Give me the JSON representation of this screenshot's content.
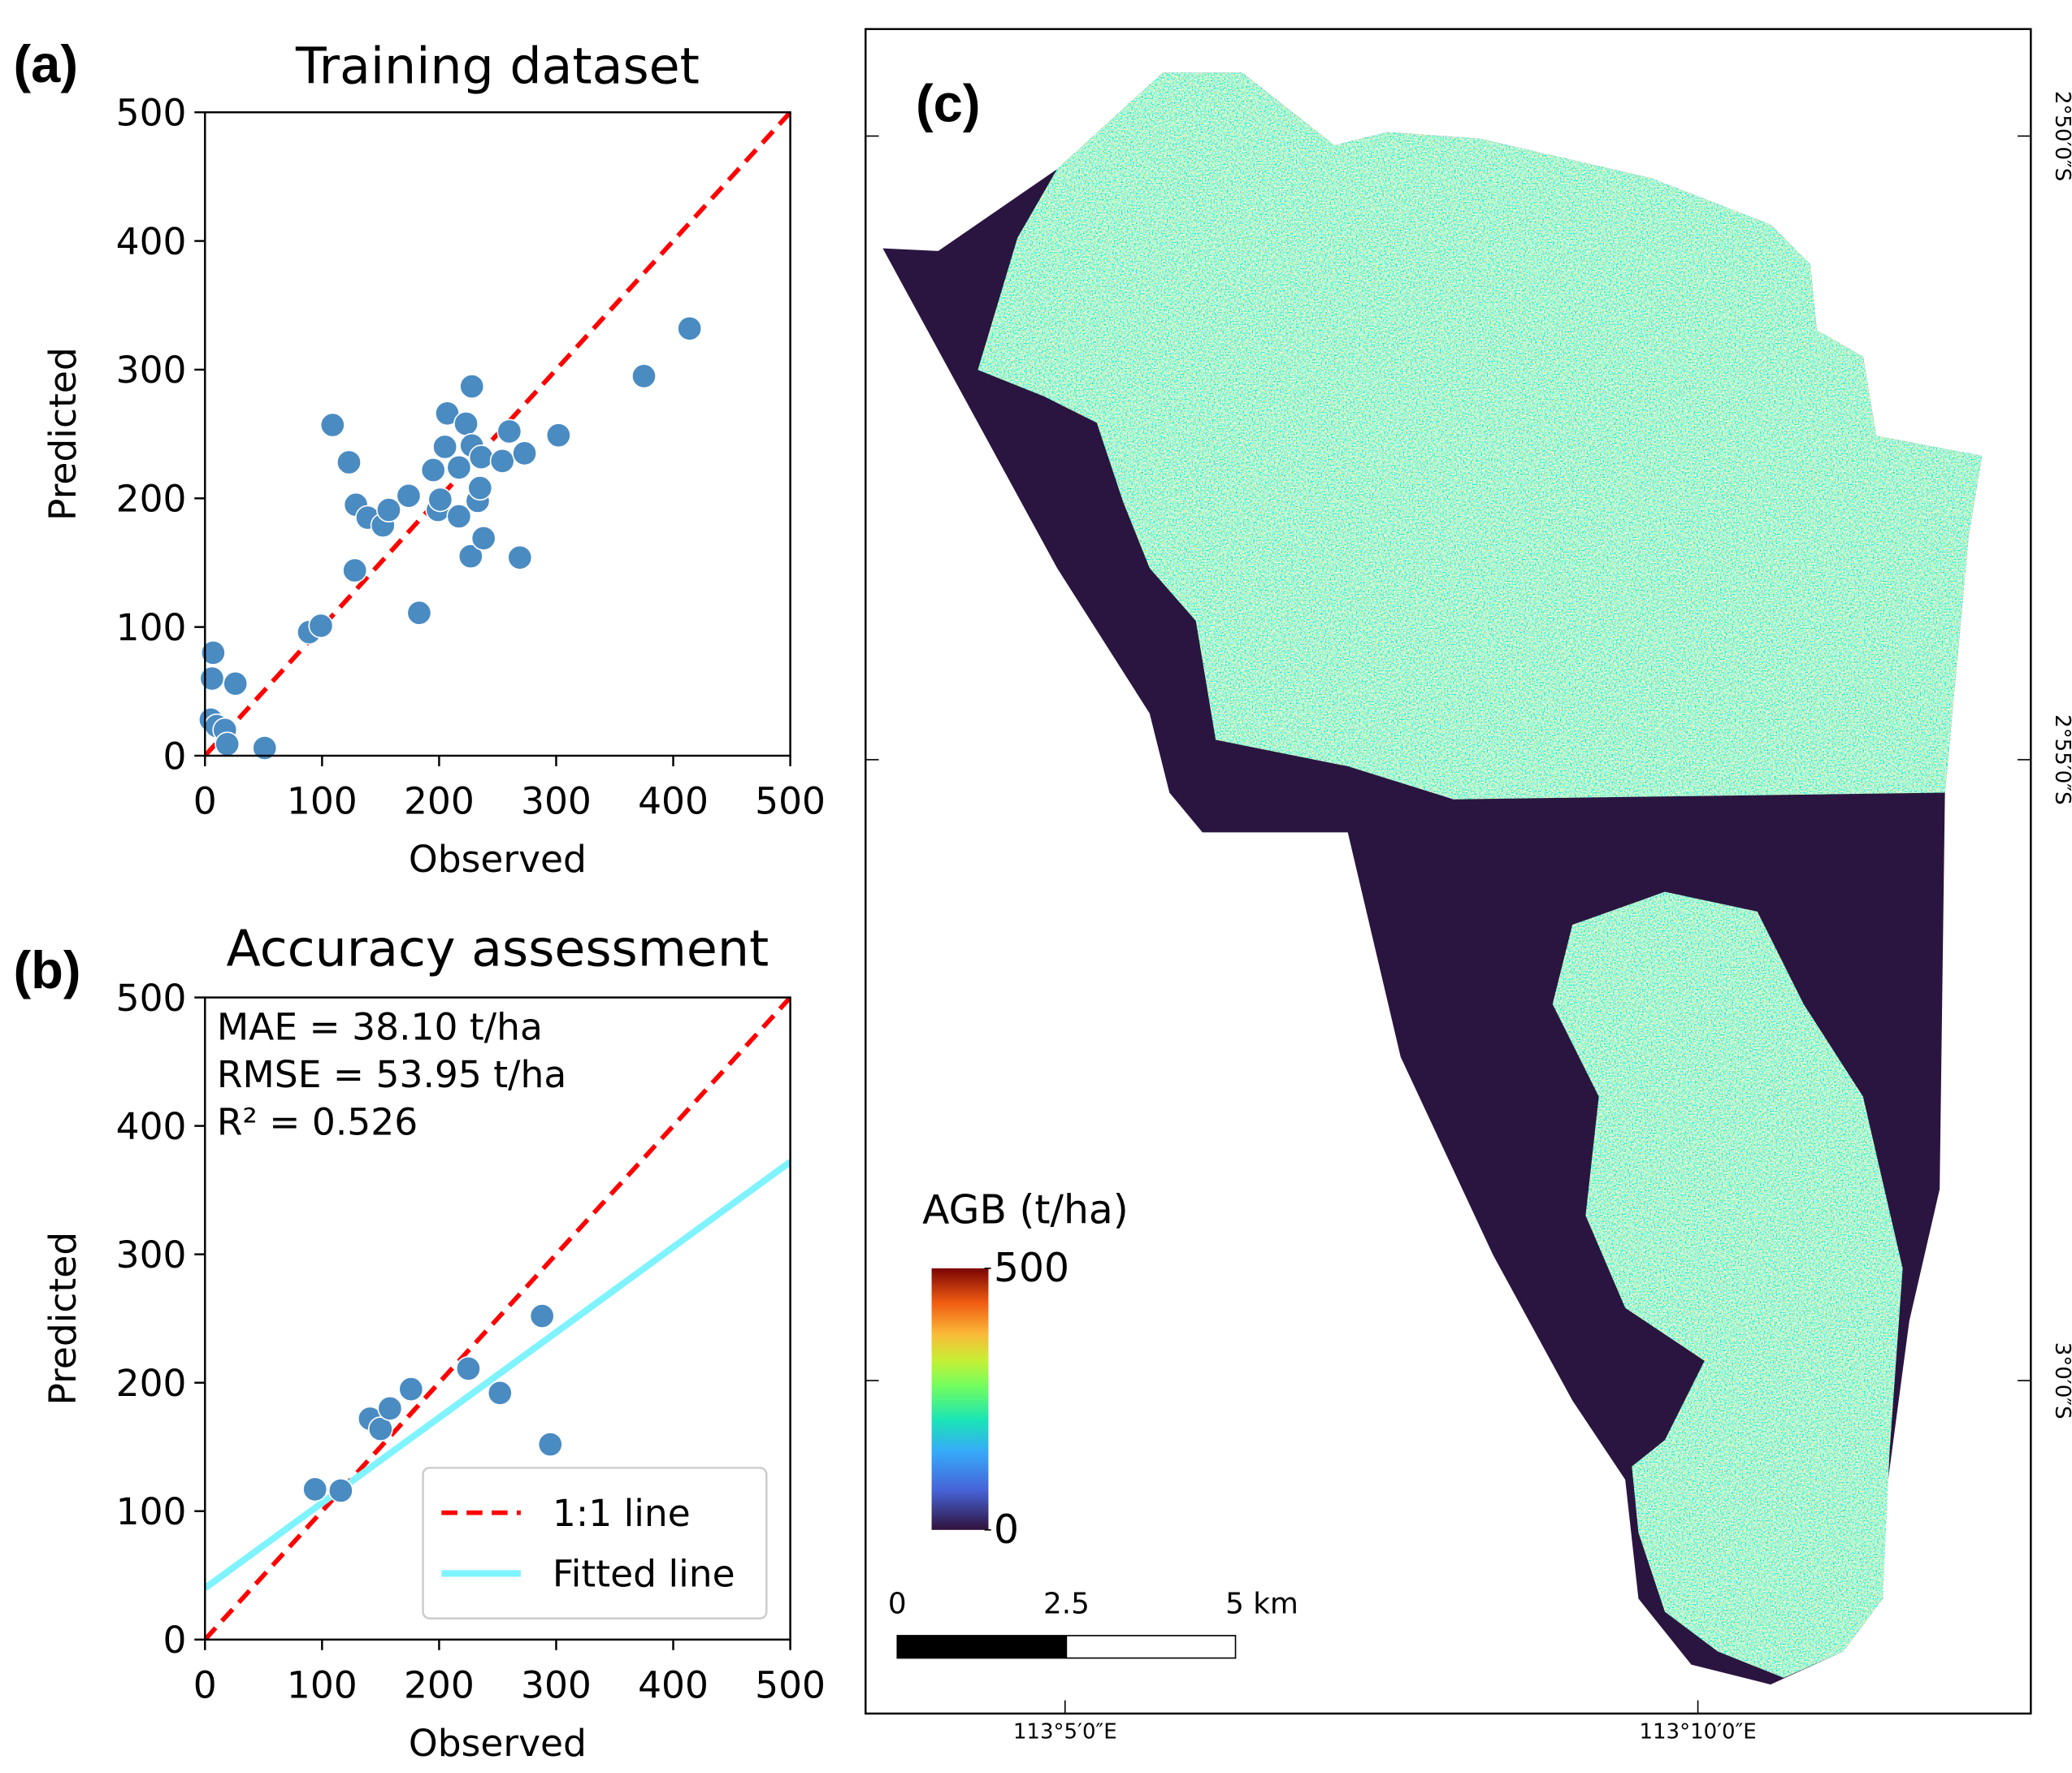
{
  "chart_data": [
    {
      "type": "scatter",
      "panel_label": "(a)",
      "title": "Training dataset",
      "xlabel": "Observed",
      "ylabel": "Predicted",
      "x": [
        7,
        6,
        26,
        5,
        10,
        17,
        19,
        51,
        89,
        99,
        109,
        123,
        129,
        128,
        139,
        152,
        157,
        174,
        183,
        195,
        199,
        201,
        207,
        205,
        217,
        217,
        223,
        228,
        227,
        228,
        233,
        235,
        236,
        238,
        254,
        260,
        273,
        269,
        302,
        375,
        414
      ],
      "values": [
        80,
        60,
        56,
        28,
        23,
        20,
        9,
        6,
        96,
        101,
        257,
        228,
        195,
        144,
        185,
        179,
        191,
        202,
        111,
        222,
        191,
        199,
        266,
        240,
        224,
        186,
        258,
        287,
        155,
        241,
        198,
        208,
        232,
        169,
        229,
        252,
        235,
        154,
        249,
        295,
        332
      ],
      "color": "#4a8bc2",
      "lines": [
        {
          "x": [
            0,
            500
          ],
          "values": [
            0,
            500
          ],
          "color": "#ff0000",
          "dash": true
        }
      ],
      "xlim": [
        0,
        500
      ],
      "ylim": [
        0,
        500
      ],
      "xticks": [
        0,
        100,
        200,
        300,
        400,
        500
      ],
      "yticks": [
        0,
        100,
        200,
        300,
        400,
        500
      ]
    },
    {
      "type": "scatter",
      "panel_label": "(b)",
      "title": "Accuracy assessment",
      "xlabel": "Observed",
      "ylabel": "Predicted",
      "annotations": [
        "MAE = 38.10 t/ha",
        "RMSE = 53.95 t/ha",
        "R² = 0.526"
      ],
      "x": [
        94,
        116,
        141,
        150,
        158,
        176,
        225,
        252,
        288,
        295
      ],
      "values": [
        117,
        116,
        172,
        164,
        180,
        195,
        211,
        192,
        252,
        152
      ],
      "color": "#4a8bc2",
      "lines": [
        {
          "name": "1:1 line",
          "x": [
            0,
            500
          ],
          "values": [
            0,
            500
          ],
          "color": "#ff0000",
          "dash": true
        },
        {
          "name": "Fitted line",
          "x": [
            0,
            500
          ],
          "values": [
            40,
            372
          ],
          "color": "#7ff3ff",
          "dash": false
        }
      ],
      "legend": "lower right",
      "xlim": [
        0,
        500
      ],
      "ylim": [
        0,
        500
      ],
      "xticks": [
        0,
        100,
        200,
        300,
        400,
        500
      ],
      "yticks": [
        0,
        100,
        200,
        300,
        400,
        500
      ]
    }
  ],
  "map": {
    "panel_label": "(c)",
    "colorbar": {
      "title": "AGB (t/ha)",
      "lim": [
        0,
        500
      ],
      "ticks": [
        0,
        500
      ]
    },
    "scale_bar": [
      "0",
      "2.5",
      "5 km"
    ],
    "lat_labels": [
      "2°50′0″S",
      "2°55′0″S",
      "3°0′0″S"
    ],
    "lon_labels": [
      "113°5′0″E",
      "113°10′0″E"
    ]
  }
}
